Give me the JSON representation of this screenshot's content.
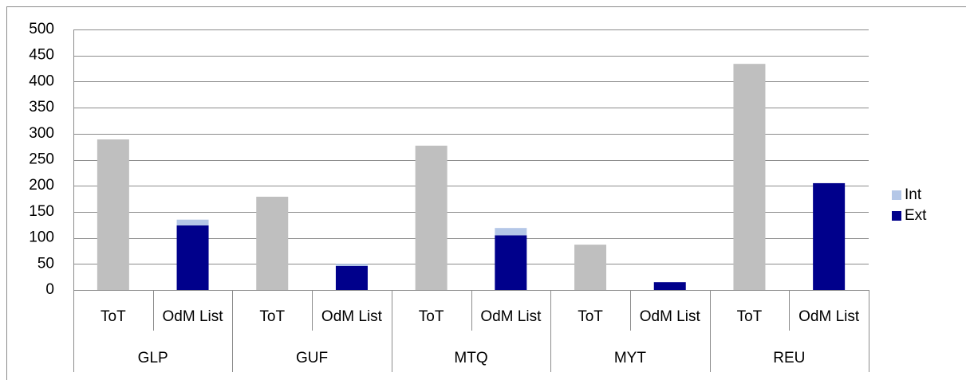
{
  "chart_data": {
    "type": "stacked-bar",
    "groups": [
      "GLP",
      "GUF",
      "MTQ",
      "MYT",
      "REU"
    ],
    "categories": [
      "ToT",
      "OdM List",
      "ToT",
      "OdM List",
      "ToT",
      "OdM List",
      "ToT",
      "OdM List",
      "ToT",
      "OdM List"
    ],
    "series": [
      {
        "color": "#bfbfbf",
        "values": [
          289,
          null,
          179,
          null,
          277,
          null,
          87,
          null,
          434,
          null
        ]
      },
      {
        "name": "Ext",
        "color": "#00008b",
        "values": [
          null,
          124,
          null,
          46,
          null,
          105,
          null,
          15,
          null,
          205
        ]
      },
      {
        "name": "Int",
        "color": "#b4c7e7",
        "values": [
          null,
          11,
          null,
          4,
          null,
          14,
          null,
          0,
          null,
          0
        ]
      }
    ],
    "legend_order": [
      "Int",
      "Ext"
    ],
    "ylim": [
      0,
      500
    ],
    "yticks": [
      0,
      50,
      100,
      150,
      200,
      250,
      300,
      350,
      400,
      450,
      500
    ],
    "grid": true,
    "legend": "right"
  }
}
